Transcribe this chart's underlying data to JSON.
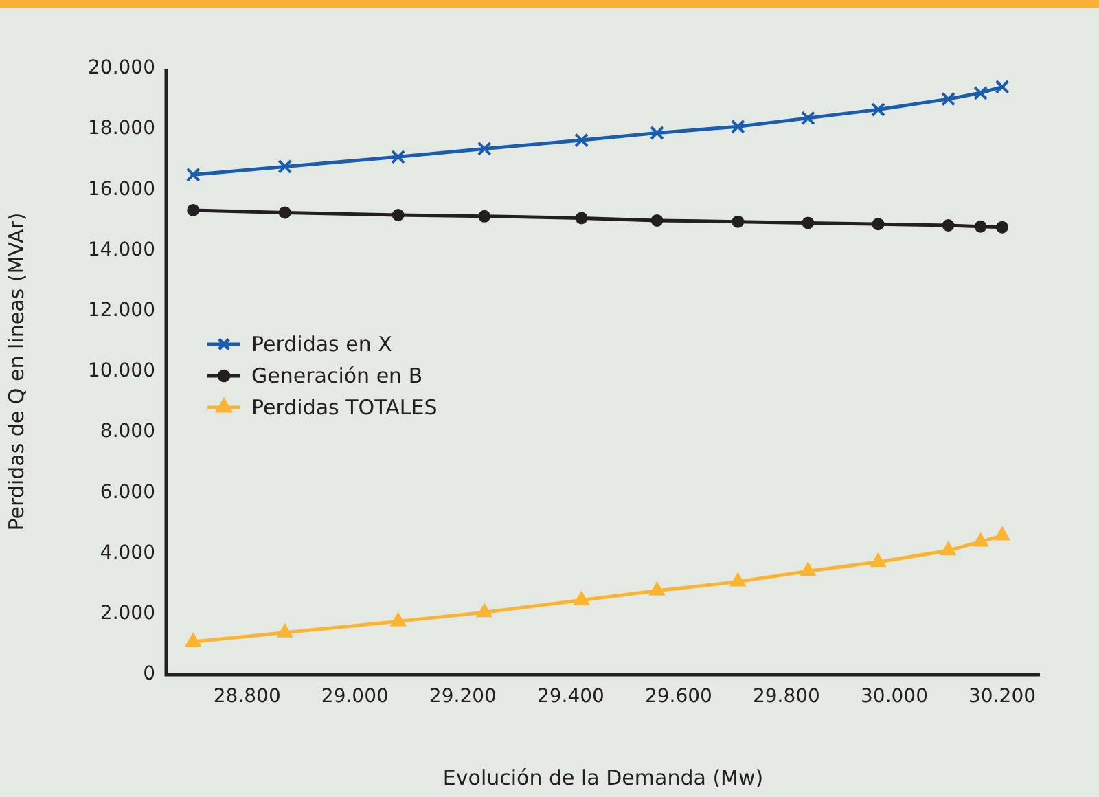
{
  "chart_data": {
    "type": "line",
    "xlabel": "Evolución de la Demanda (Mw)",
    "ylabel": "Perdidas de Q en lineas (MVAr)",
    "x": [
      28700,
      28870,
      29080,
      29240,
      29420,
      29560,
      29710,
      29840,
      29970,
      30100,
      30160,
      30200
    ],
    "series": [
      {
        "name": "Perdidas en X",
        "color": "#1a5cad",
        "marker": "cross",
        "values": [
          16500,
          16770,
          17090,
          17360,
          17640,
          17880,
          18090,
          18370,
          18650,
          19000,
          19200,
          19400
        ]
      },
      {
        "name": "Generación en B",
        "color": "#231f20",
        "marker": "circle",
        "values": [
          15330,
          15250,
          15170,
          15130,
          15070,
          14990,
          14950,
          14910,
          14870,
          14830,
          14790,
          14770
        ]
      },
      {
        "name": "Perdidas TOTALES",
        "color": "#fbb431",
        "marker": "triangle",
        "values": [
          1090,
          1390,
          1760,
          2060,
          2460,
          2770,
          3070,
          3420,
          3720,
          4100,
          4390,
          4590
        ]
      }
    ],
    "xlim": [
      28650,
      30270
    ],
    "xticks": [
      {
        "value": 28800,
        "label": "28.800"
      },
      {
        "value": 29000,
        "label": "29.000"
      },
      {
        "value": 29200,
        "label": "29.200"
      },
      {
        "value": 29400,
        "label": "29.400"
      },
      {
        "value": 29600,
        "label": "29.600"
      },
      {
        "value": 29800,
        "label": "29.800"
      },
      {
        "value": 30000,
        "label": "30.000"
      },
      {
        "value": 30200,
        "label": "30.200"
      }
    ],
    "ylim": [
      0,
      20000
    ],
    "yticks": [
      0,
      {
        "value": 2000,
        "label": "2.000"
      },
      {
        "value": 4000,
        "label": "4.000"
      },
      {
        "value": 6000,
        "label": "6.000"
      },
      {
        "value": 8000,
        "label": "8.000"
      },
      {
        "value": 10000,
        "label": "10.000"
      },
      {
        "value": 12000,
        "label": "12.000"
      },
      {
        "value": 14000,
        "label": "14.000"
      },
      {
        "value": 16000,
        "label": "16.000"
      },
      {
        "value": 18000,
        "label": "18.000"
      },
      {
        "value": 20000,
        "label": "20.000"
      }
    ],
    "grid": false,
    "legend": "left",
    "line_style": "solid"
  }
}
